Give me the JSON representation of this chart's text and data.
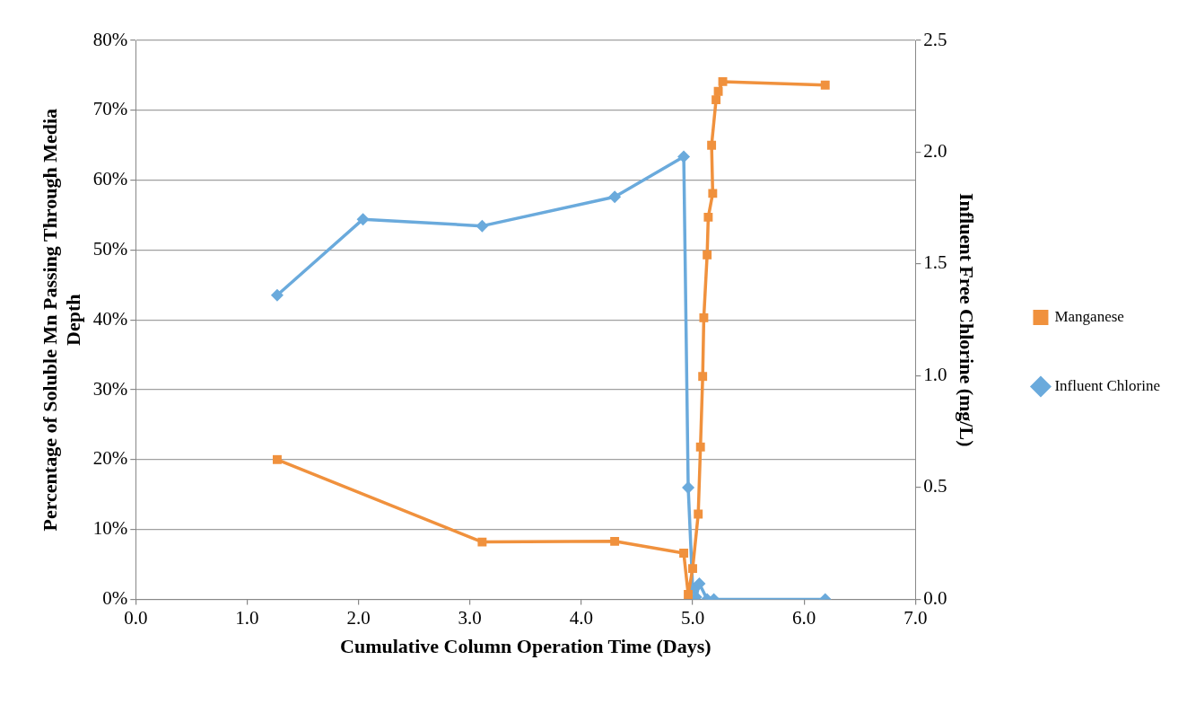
{
  "chart_data": {
    "type": "line",
    "xlabel": "Cumulative Column Operation Time (Days)",
    "ylabel": "Percentage of Soluble Mn Passing Through Media Depth",
    "y2label": "Influent Free Chlorine (mg/L)",
    "xlim": [
      0,
      7
    ],
    "xticks": [
      {
        "value": 0,
        "label": "0.0"
      },
      {
        "value": 1,
        "label": "1.0"
      },
      {
        "value": 2,
        "label": "2.0"
      },
      {
        "value": 3,
        "label": "3.0"
      },
      {
        "value": 4,
        "label": "4.0"
      },
      {
        "value": 5,
        "label": "5.0"
      },
      {
        "value": 6,
        "label": "6.0"
      },
      {
        "value": 7,
        "label": "7.0"
      }
    ],
    "ylim": [
      0,
      80
    ],
    "yticks": [
      {
        "value": 0,
        "label": "0%"
      },
      {
        "value": 10,
        "label": "10%"
      },
      {
        "value": 20,
        "label": "20%"
      },
      {
        "value": 30,
        "label": "30%"
      },
      {
        "value": 40,
        "label": "40%"
      },
      {
        "value": 50,
        "label": "50%"
      },
      {
        "value": 60,
        "label": "60%"
      },
      {
        "value": 70,
        "label": "70%"
      },
      {
        "value": 80,
        "label": "80%"
      }
    ],
    "y2lim": [
      0,
      2.5
    ],
    "y2ticks": [
      {
        "value": 0,
        "label": "0.0"
      },
      {
        "value": 0.5,
        "label": "0.5"
      },
      {
        "value": 1,
        "label": "1.0"
      },
      {
        "value": 1.5,
        "label": "1.5"
      },
      {
        "value": 2,
        "label": "2.0"
      },
      {
        "value": 2.5,
        "label": "2.5"
      }
    ],
    "grid": "y",
    "legend": "right",
    "series": [
      {
        "name": "Manganese",
        "color": "#f0913d",
        "marker": "square",
        "x": [
          1.27,
          3.11,
          4.3,
          4.92,
          4.96,
          5.0,
          5.05,
          5.07,
          5.09,
          5.1,
          5.13,
          5.14,
          5.18,
          5.17,
          5.21,
          5.23,
          5.27,
          6.19
        ],
        "values": [
          20,
          8.2,
          8.3,
          6.6,
          0.7,
          4.4,
          12.2,
          21.8,
          31.9,
          40.3,
          49.3,
          54.7,
          58.1,
          65,
          71.5,
          72.7,
          74.1,
          73.6
        ]
      },
      {
        "name": "Influent Chlorine",
        "color": "#6aaadc",
        "marker": "diamond",
        "axis": "y2",
        "x": [
          1.27,
          2.04,
          3.11,
          4.3,
          4.92,
          4.96,
          5.0,
          5.03,
          5.06,
          5.13,
          5.19,
          6.19
        ],
        "values": [
          1.36,
          1.7,
          1.67,
          1.8,
          1.98,
          0.5,
          0.05,
          0.01,
          0.07,
          0,
          0,
          0
        ]
      }
    ]
  }
}
